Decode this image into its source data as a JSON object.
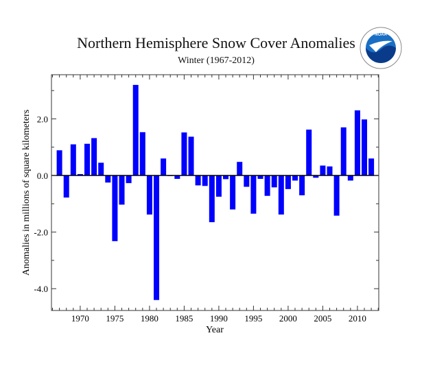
{
  "chart_data": {
    "type": "bar",
    "title": "Northern Hemisphere Snow Cover Anomalies",
    "subtitle": "Winter (1967-2012)",
    "xlabel": "Year",
    "ylabel": "Anomalies in millions of square kilometers",
    "xlim": [
      1966,
      2013
    ],
    "ylim": [
      -4.77,
      3.56
    ],
    "yticks": [
      {
        "v": -4,
        "label": "-4.0"
      },
      {
        "v": -2,
        "label": "-2.0"
      },
      {
        "v": 0,
        "label": "0.0"
      },
      {
        "v": 2,
        "label": "2.0"
      }
    ],
    "xticks": [
      1970,
      1975,
      1980,
      1985,
      1990,
      1995,
      2000,
      2005,
      2010
    ],
    "grid": false,
    "bar_color": "#0000ff",
    "x": [
      1967,
      1968,
      1969,
      1970,
      1971,
      1972,
      1973,
      1974,
      1975,
      1976,
      1977,
      1978,
      1979,
      1980,
      1981,
      1982,
      1983,
      1984,
      1985,
      1986,
      1987,
      1988,
      1989,
      1990,
      1991,
      1992,
      1993,
      1994,
      1995,
      1996,
      1997,
      1998,
      1999,
      2000,
      2001,
      2002,
      2003,
      2004,
      2005,
      2006,
      2007,
      2008,
      2009,
      2010,
      2011,
      2012
    ],
    "values": [
      0.89,
      -0.78,
      1.1,
      0.05,
      1.12,
      1.32,
      0.45,
      -0.25,
      -2.32,
      -1.03,
      -0.27,
      3.2,
      1.53,
      -1.38,
      -4.4,
      0.6,
      -0.02,
      -0.12,
      1.52,
      1.37,
      -0.35,
      -0.37,
      -1.65,
      -0.75,
      -0.13,
      -1.2,
      0.48,
      -0.4,
      -1.35,
      -0.12,
      -0.72,
      -0.42,
      -1.38,
      -0.48,
      -0.18,
      -0.7,
      1.62,
      -0.08,
      0.35,
      0.32,
      -1.42,
      1.7,
      -0.18,
      2.3,
      1.98,
      0.6
    ]
  },
  "logo": {
    "text": "NOAA",
    "ring_text": "NATIONAL OCEANIC AND ATMOSPHERIC ADMINISTRATION · U.S. DEPARTMENT OF COMMERCE"
  }
}
